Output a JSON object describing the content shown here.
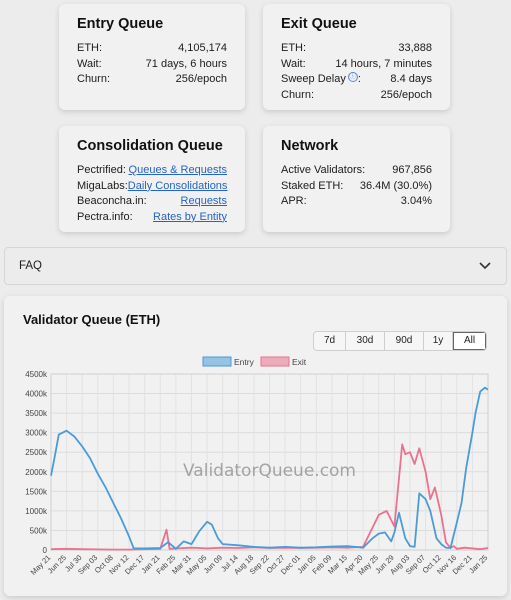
{
  "entry_queue": {
    "title": "Entry Queue",
    "rows": [
      {
        "label": "ETH:",
        "value": "4,105,174"
      },
      {
        "label": "Wait:",
        "value": "71 days, 6 hours"
      },
      {
        "label": "Churn:",
        "value": "256/epoch"
      }
    ]
  },
  "exit_queue": {
    "title": "Exit Queue",
    "rows": [
      {
        "label": "ETH:",
        "value": "33,888"
      },
      {
        "label": "Wait:",
        "value": "14 hours, 7 minutes"
      },
      {
        "label": "Sweep Delay",
        "value": "8.4 days"
      },
      {
        "label": "Churn:",
        "value": "256/epoch"
      }
    ],
    "info_glyph": "ⓘ"
  },
  "consolidation_queue": {
    "title": "Consolidation Queue",
    "rows": [
      {
        "label": "Pectrified:",
        "value": "Queues & Requests"
      },
      {
        "label": "MigaLabs:",
        "value": "Daily Consolidations"
      },
      {
        "label": "Beaconcha.in:",
        "value": "Requests"
      },
      {
        "label": "Pectra.info:",
        "value": "Rates by Entity"
      }
    ]
  },
  "network": {
    "title": "Network",
    "rows": [
      {
        "label": "Active Validators:",
        "value": "967,856"
      },
      {
        "label": "Staked ETH:",
        "value": "36.4M (30.0%)"
      },
      {
        "label": "APR:",
        "value": "3.04%"
      }
    ]
  },
  "faq": {
    "label": "FAQ",
    "icon": "chevron-down-icon"
  },
  "chart": {
    "title": "Validator Queue (ETH)",
    "ranges": [
      "7d",
      "30d",
      "90d",
      "1y",
      "All"
    ],
    "active_range": "All",
    "watermark": "ValidatorQueue.com",
    "colors": {
      "entry": "#4a9bd8",
      "exit": "#e8738f"
    }
  },
  "chart_data": {
    "type": "line",
    "legend_position": "top",
    "grid": true,
    "ylim": [
      0,
      4500000
    ],
    "yticks": [
      "0",
      "500k",
      "1000k",
      "1500k",
      "2000k",
      "2500k",
      "3000k",
      "3500k",
      "4000k",
      "4500k"
    ],
    "xticks": [
      "May 21",
      "Jun 25",
      "Jul 30",
      "Sep 03",
      "Oct 08",
      "Nov 12",
      "Dec 17",
      "Jan 21",
      "Feb 25",
      "Mar 31",
      "May 05",
      "Jun 09",
      "Jul 14",
      "Aug 18",
      "Sep 22",
      "Oct 27",
      "Dec 01",
      "Jan 05",
      "Feb 09",
      "Mar 15",
      "Apr 20",
      "May 25",
      "Jun 29",
      "Aug 03",
      "Sep 07",
      "Oct 12",
      "Nov 16",
      "Dec 21",
      "Jan 25"
    ],
    "series": [
      {
        "name": "Entry",
        "x": [
          0,
          0.2,
          0.5,
          1,
          1.5,
          2,
          2.5,
          3,
          3.5,
          4,
          4.5,
          5,
          5.3,
          6,
          7,
          7.5,
          8,
          8.5,
          9,
          9.5,
          10,
          10.3,
          10.7,
          11,
          12,
          13,
          14,
          15,
          16,
          17,
          18,
          19,
          20,
          20.6,
          21,
          21.4,
          21.8,
          22,
          22.3,
          22.7,
          23,
          23.3,
          23.6,
          24,
          24.3,
          24.7,
          25,
          25.3,
          25.6,
          26,
          26.3,
          26.6,
          27,
          27.2,
          27.5,
          27.8,
          28
        ],
        "y": [
          1900000,
          2300000,
          2950000,
          3050000,
          2900000,
          2650000,
          2350000,
          1950000,
          1600000,
          1200000,
          800000,
          350000,
          40000,
          40000,
          50000,
          200000,
          30000,
          220000,
          150000,
          480000,
          720000,
          650000,
          300000,
          150000,
          120000,
          80000,
          60000,
          80000,
          60000,
          70000,
          90000,
          100000,
          60000,
          300000,
          420000,
          450000,
          220000,
          450000,
          950000,
          300000,
          100000,
          80000,
          1450000,
          1300000,
          1000000,
          300000,
          150000,
          60000,
          50000,
          700000,
          1200000,
          2100000,
          3000000,
          3500000,
          4050000,
          4150000,
          4100000
        ]
      },
      {
        "name": "Exit",
        "x": [
          0,
          1,
          2,
          3,
          4,
          5,
          6,
          7,
          7.4,
          7.6,
          8,
          9,
          10,
          11,
          12,
          13,
          14,
          15,
          16,
          17,
          18,
          19,
          20,
          21,
          21.5,
          22,
          22.5,
          22.7,
          23,
          23.3,
          23.6,
          24,
          24.3,
          24.6,
          25,
          25.3,
          25.6,
          25.8,
          26,
          26.5,
          27,
          27.5,
          28
        ],
        "y": [
          20000,
          30000,
          20000,
          15000,
          10000,
          10000,
          20000,
          30000,
          520000,
          30000,
          40000,
          60000,
          40000,
          60000,
          50000,
          70000,
          50000,
          60000,
          50000,
          60000,
          70000,
          60000,
          80000,
          900000,
          1000000,
          600000,
          2700000,
          2450000,
          2500000,
          2200000,
          2600000,
          2000000,
          1300000,
          1600000,
          900000,
          200000,
          50000,
          100000,
          30000,
          60000,
          40000,
          20000,
          50000
        ]
      }
    ]
  }
}
